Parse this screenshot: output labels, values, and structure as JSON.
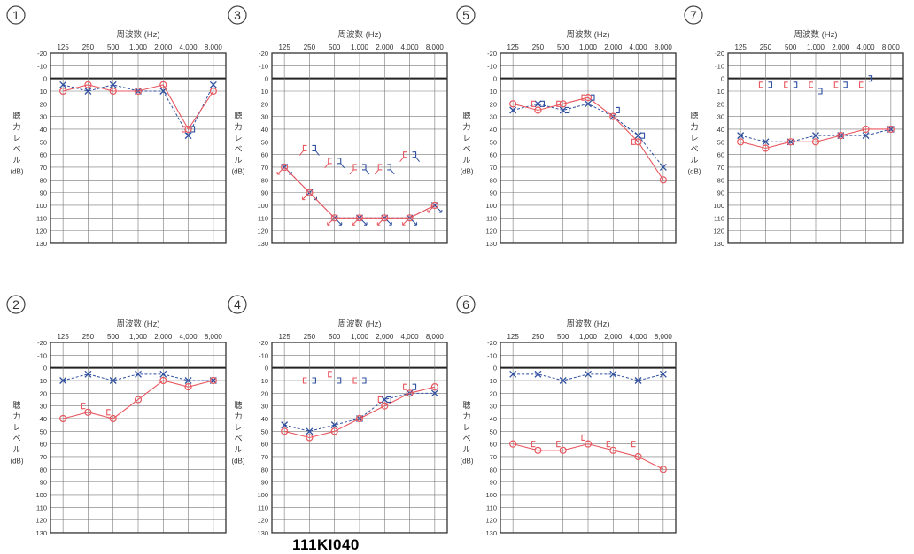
{
  "figure_code": "111KI040",
  "common": {
    "freq_title": "周波数 (Hz)",
    "ylabel_chars": [
      "聴",
      "力",
      "レ",
      "ベ",
      "ル"
    ],
    "ylabel_unit": "(dB)",
    "x_labels": [
      "125",
      "250",
      "500",
      "1,000",
      "2,000",
      "4,000",
      "8,000"
    ],
    "y_ticks": [
      -20,
      -10,
      0,
      10,
      20,
      30,
      40,
      50,
      60,
      70,
      80,
      90,
      100,
      110,
      120,
      130
    ]
  },
  "colors": {
    "right_ear": "#e8575f",
    "left_ear": "#2e4fa0",
    "axis": "#333333",
    "grid": "#777777"
  },
  "chart_data": [
    {
      "label": "1",
      "type": "line",
      "ylim": [
        -20,
        130
      ],
      "y_inverted": true,
      "right_air": [
        10,
        5,
        10,
        10,
        5,
        40,
        10
      ],
      "left_air": [
        5,
        10,
        5,
        10,
        10,
        45,
        5
      ],
      "right_bone": [
        [
          5,
          40
        ]
      ],
      "left_bone": [
        [
          5,
          40
        ]
      ]
    },
    {
      "label": "2",
      "type": "line",
      "ylim": [
        -20,
        130
      ],
      "y_inverted": true,
      "right_air": [
        40,
        35,
        40,
        25,
        10,
        15,
        10
      ],
      "left_air": [
        10,
        5,
        10,
        5,
        5,
        10,
        10
      ],
      "right_bone": [
        [
          1,
          30
        ],
        [
          2,
          35
        ]
      ],
      "left_bone": []
    },
    {
      "label": "3",
      "type": "line",
      "ylim": [
        -20,
        130
      ],
      "y_inverted": true,
      "right_air": [
        70,
        90,
        110,
        110,
        110,
        110,
        100
      ],
      "left_air": [
        70,
        90,
        110,
        110,
        110,
        110,
        100
      ],
      "right_air_no_response": true,
      "left_air_no_response": true,
      "right_bone": [
        [
          1,
          55
        ],
        [
          2,
          65
        ],
        [
          3,
          70
        ],
        [
          4,
          70
        ],
        [
          5,
          60
        ]
      ],
      "left_bone": [
        [
          1,
          55
        ],
        [
          2,
          65
        ],
        [
          3,
          70
        ],
        [
          4,
          70
        ],
        [
          5,
          60
        ]
      ],
      "right_bone_no_response": true,
      "left_bone_no_response": true
    },
    {
      "label": "4",
      "type": "line",
      "ylim": [
        -20,
        130
      ],
      "y_inverted": true,
      "right_air": [
        50,
        55,
        50,
        40,
        30,
        20,
        15
      ],
      "left_air": [
        45,
        50,
        45,
        40,
        25,
        20,
        20
      ],
      "right_bone": [
        [
          1,
          10
        ],
        [
          2,
          5
        ],
        [
          3,
          10
        ],
        [
          4,
          25
        ],
        [
          5,
          15
        ]
      ],
      "left_bone": [
        [
          1,
          10
        ],
        [
          2,
          10
        ],
        [
          3,
          10
        ],
        [
          4,
          25
        ],
        [
          5,
          15
        ]
      ]
    },
    {
      "label": "5",
      "type": "line",
      "ylim": [
        -20,
        130
      ],
      "y_inverted": true,
      "right_air": [
        20,
        25,
        20,
        15,
        30,
        50,
        80
      ],
      "left_air": [
        25,
        20,
        25,
        20,
        30,
        45,
        70
      ],
      "right_bone": [
        [
          1,
          20
        ],
        [
          2,
          20
        ],
        [
          3,
          15
        ],
        [
          5,
          50
        ]
      ],
      "left_bone": [
        [
          1,
          20
        ],
        [
          2,
          25
        ],
        [
          3,
          15
        ],
        [
          4,
          25
        ],
        [
          5,
          45
        ]
      ]
    },
    {
      "label": "6",
      "type": "line",
      "ylim": [
        -20,
        130
      ],
      "y_inverted": true,
      "right_air": [
        60,
        65,
        65,
        60,
        65,
        70,
        80
      ],
      "left_air": [
        5,
        5,
        10,
        5,
        5,
        10,
        5
      ],
      "right_bone": [
        [
          1,
          60
        ],
        [
          2,
          60
        ],
        [
          3,
          55
        ],
        [
          4,
          60
        ],
        [
          5,
          60
        ]
      ],
      "left_bone": []
    },
    {
      "label": "7",
      "type": "line",
      "ylim": [
        -20,
        130
      ],
      "y_inverted": true,
      "right_air": [
        50,
        55,
        50,
        50,
        45,
        40,
        40
      ],
      "left_air": [
        45,
        50,
        50,
        45,
        45,
        45,
        40
      ],
      "right_bone": [
        [
          1,
          5
        ],
        [
          2,
          5
        ],
        [
          3,
          5
        ],
        [
          4,
          5
        ],
        [
          5,
          5
        ]
      ],
      "left_bone": [
        [
          1,
          5
        ],
        [
          2,
          5
        ],
        [
          3,
          10
        ],
        [
          4,
          5
        ],
        [
          5,
          0
        ]
      ]
    }
  ]
}
